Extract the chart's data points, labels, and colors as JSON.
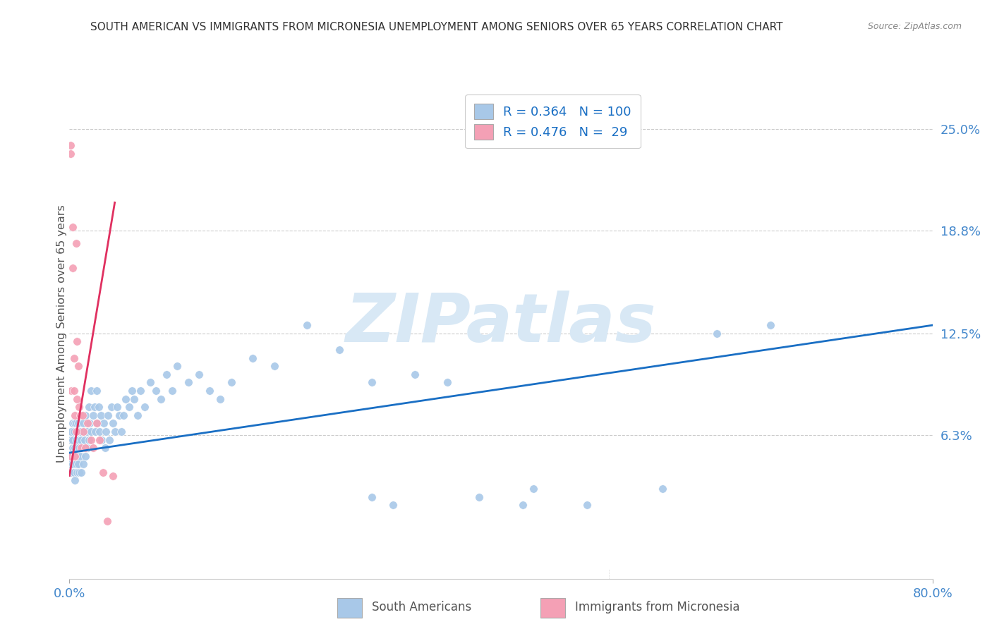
{
  "title": "SOUTH AMERICAN VS IMMIGRANTS FROM MICRONESIA UNEMPLOYMENT AMONG SENIORS OVER 65 YEARS CORRELATION CHART",
  "source": "Source: ZipAtlas.com",
  "ylabel": "Unemployment Among Seniors over 65 years",
  "ytick_labels": [
    "25.0%",
    "18.8%",
    "12.5%",
    "6.3%"
  ],
  "ytick_values": [
    0.25,
    0.188,
    0.125,
    0.063
  ],
  "watermark": "ZIPatlas",
  "blue_color": "#a8c8e8",
  "pink_color": "#f4a0b5",
  "line_blue": "#1a6fc4",
  "line_pink": "#e03060",
  "axis_tick_color": "#4488cc",
  "watermark_color": "#d8e8f5",
  "blue_scatter_x": [
    0.001,
    0.001,
    0.002,
    0.002,
    0.002,
    0.003,
    0.003,
    0.003,
    0.003,
    0.004,
    0.004,
    0.004,
    0.005,
    0.005,
    0.005,
    0.005,
    0.006,
    0.006,
    0.006,
    0.007,
    0.007,
    0.007,
    0.007,
    0.008,
    0.008,
    0.008,
    0.009,
    0.009,
    0.01,
    0.01,
    0.011,
    0.011,
    0.012,
    0.013,
    0.013,
    0.014,
    0.015,
    0.015,
    0.016,
    0.017,
    0.018,
    0.018,
    0.019,
    0.02,
    0.02,
    0.022,
    0.023,
    0.024,
    0.025,
    0.026,
    0.027,
    0.028,
    0.029,
    0.03,
    0.032,
    0.033,
    0.034,
    0.036,
    0.037,
    0.039,
    0.04,
    0.042,
    0.044,
    0.046,
    0.048,
    0.05,
    0.052,
    0.055,
    0.058,
    0.06,
    0.063,
    0.066,
    0.07,
    0.075,
    0.08,
    0.085,
    0.09,
    0.095,
    0.1,
    0.11,
    0.12,
    0.13,
    0.14,
    0.15,
    0.17,
    0.19,
    0.22,
    0.25,
    0.28,
    0.32,
    0.38,
    0.43,
    0.48,
    0.55,
    0.35,
    0.42,
    0.3,
    0.28,
    0.6,
    0.65
  ],
  "blue_scatter_y": [
    0.045,
    0.06,
    0.05,
    0.065,
    0.04,
    0.055,
    0.07,
    0.045,
    0.06,
    0.05,
    0.065,
    0.04,
    0.055,
    0.07,
    0.05,
    0.035,
    0.06,
    0.045,
    0.07,
    0.055,
    0.065,
    0.04,
    0.05,
    0.06,
    0.045,
    0.07,
    0.055,
    0.04,
    0.065,
    0.05,
    0.06,
    0.04,
    0.055,
    0.07,
    0.045,
    0.06,
    0.05,
    0.075,
    0.065,
    0.055,
    0.08,
    0.06,
    0.07,
    0.065,
    0.09,
    0.075,
    0.08,
    0.065,
    0.09,
    0.07,
    0.08,
    0.065,
    0.075,
    0.06,
    0.07,
    0.055,
    0.065,
    0.075,
    0.06,
    0.08,
    0.07,
    0.065,
    0.08,
    0.075,
    0.065,
    0.075,
    0.085,
    0.08,
    0.09,
    0.085,
    0.075,
    0.09,
    0.08,
    0.095,
    0.09,
    0.085,
    0.1,
    0.09,
    0.105,
    0.095,
    0.1,
    0.09,
    0.085,
    0.095,
    0.11,
    0.105,
    0.13,
    0.115,
    0.095,
    0.1,
    0.025,
    0.03,
    0.02,
    0.03,
    0.095,
    0.02,
    0.02,
    0.025,
    0.125,
    0.13
  ],
  "pink_scatter_x": [
    0.001,
    0.001,
    0.002,
    0.002,
    0.003,
    0.003,
    0.004,
    0.004,
    0.005,
    0.006,
    0.007,
    0.008,
    0.009,
    0.01,
    0.011,
    0.012,
    0.013,
    0.015,
    0.017,
    0.02,
    0.022,
    0.025,
    0.028,
    0.031,
    0.035,
    0.04,
    0.005,
    0.006,
    0.007
  ],
  "pink_scatter_y": [
    0.24,
    0.235,
    0.09,
    0.05,
    0.19,
    0.165,
    0.09,
    0.11,
    0.075,
    0.18,
    0.12,
    0.105,
    0.08,
    0.075,
    0.055,
    0.075,
    0.065,
    0.055,
    0.07,
    0.06,
    0.055,
    0.07,
    0.06,
    0.04,
    0.01,
    0.038,
    0.05,
    0.065,
    0.085
  ],
  "blue_line_x0": 0.0,
  "blue_line_x1": 0.8,
  "blue_line_y0": 0.052,
  "blue_line_y1": 0.13,
  "pink_line_x0": 0.0,
  "pink_line_x1": 0.042,
  "pink_line_y0": 0.038,
  "pink_line_y1": 0.205,
  "xlim": [
    0.0,
    0.8
  ],
  "ylim": [
    -0.025,
    0.275
  ]
}
